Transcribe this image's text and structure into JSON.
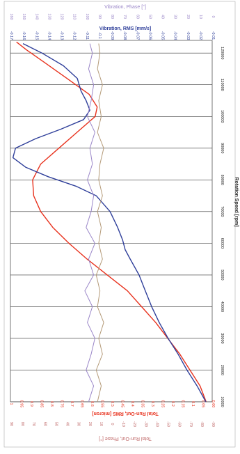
{
  "chart_data": {
    "type": "line",
    "orientation": "rotated",
    "x_axis": {
      "label": "Rotation Speed [rpm]",
      "ticks": [
        "10000",
        "20000",
        "30000",
        "40000",
        "50000",
        "60000",
        "70000",
        "80000",
        "90000",
        "100000",
        "110000",
        "120000"
      ],
      "range": [
        10000,
        124000
      ]
    },
    "rms_axis": {
      "label": "Vibration, RMS [mm/s]",
      "ticks": [
        "-0.17",
        "-0.16",
        "-0.15",
        "-0.14",
        "-0.13",
        "-0.12",
        "-0.11",
        "-0.1",
        "-0.09",
        "-0.08",
        "-0.07",
        "-0.06",
        "-0.05",
        "-0.04",
        "-0.03",
        "-0.02",
        "-0.01"
      ],
      "range": [
        -0.17,
        -0.01
      ]
    },
    "phase_axis_top": {
      "label": "Vibration, Phase [°]",
      "ticks": [
        "160",
        "150",
        "140",
        "130",
        "120",
        "110",
        "100",
        "90",
        "80",
        "70",
        "60",
        "50",
        "40",
        "30",
        "20",
        "10",
        "0"
      ]
    },
    "runout_axis": {
      "label": "Total Run-Out, RMS [micron]",
      "ticks": [
        "1",
        "0.95",
        "0.9",
        "0.85",
        "0.8",
        "0.75",
        "0.7",
        "0.65",
        "0.6",
        "0.55",
        "0.5",
        "0.45",
        "0.4",
        "0.35",
        "0.3",
        "0.25",
        "0.2",
        "0.15",
        "0.1",
        "0.05",
        "0.00"
      ],
      "range": [
        0.0,
        1.0
      ]
    },
    "phase_axis_bottom": {
      "label": "Total Run-Out, Phase [°]",
      "ticks": [
        "90",
        "80",
        "70",
        "60",
        "50",
        "40",
        "30",
        "20",
        "10",
        "0",
        "-10",
        "-20",
        "-30",
        "-40",
        "-50",
        "-60",
        "-70",
        "-80",
        "-90"
      ]
    },
    "series": [
      {
        "name": "Total Run-Out, RMS [micron]",
        "color": "#e8321e",
        "axis": "runout",
        "x": [
          10000,
          15000,
          20000,
          25000,
          30000,
          35000,
          40000,
          45000,
          50000,
          55000,
          60000,
          65000,
          70000,
          75000,
          80000,
          85000,
          90000,
          95000,
          100000,
          103000,
          107000,
          112000,
          117000,
          121000,
          123500
        ],
        "values": [
          0.03,
          0.06,
          0.11,
          0.16,
          0.22,
          0.28,
          0.35,
          0.42,
          0.52,
          0.62,
          0.71,
          0.79,
          0.85,
          0.885,
          0.89,
          0.85,
          0.76,
          0.67,
          0.58,
          0.57,
          0.61,
          0.72,
          0.83,
          0.92,
          0.97
        ]
      },
      {
        "name": "Vibration, RMS [mm/s]",
        "color": "#2f3f9a",
        "axis": "rms",
        "x": [
          10000,
          15000,
          20000,
          25000,
          30000,
          35000,
          40000,
          45000,
          50000,
          55000,
          58000,
          61000,
          65000,
          70000,
          75000,
          78000,
          81000,
          84000,
          87000,
          90000,
          93000,
          96000,
          99000,
          102000,
          105000,
          108000,
          112000,
          116000,
          120000,
          123000
        ],
        "values": [
          -0.015,
          -0.022,
          -0.03,
          -0.037,
          -0.045,
          -0.052,
          -0.058,
          -0.063,
          -0.068,
          -0.075,
          -0.079,
          -0.081,
          -0.085,
          -0.091,
          -0.102,
          -0.118,
          -0.14,
          -0.158,
          -0.168,
          -0.166,
          -0.15,
          -0.13,
          -0.112,
          -0.107,
          -0.11,
          -0.114,
          -0.117,
          -0.128,
          -0.145,
          -0.16
        ]
      },
      {
        "name": "Vibration, Phase [°]",
        "color": "#9a86c8",
        "axis": "phase",
        "x": [
          10000,
          15000,
          20000,
          25000,
          30000,
          35000,
          40000,
          45000,
          50000,
          55000,
          60000,
          65000,
          70000,
          75000,
          80000,
          85000,
          90000,
          95000,
          100000,
          105000,
          110000,
          115000,
          120000,
          123000
        ],
        "values": [
          -0.108,
          -0.104,
          -0.11,
          -0.106,
          -0.103,
          -0.109,
          -0.105,
          -0.111,
          -0.104,
          -0.108,
          -0.103,
          -0.11,
          -0.106,
          -0.104,
          -0.109,
          -0.105,
          -0.107,
          -0.103,
          -0.109,
          -0.106,
          -0.104,
          -0.108,
          -0.105,
          -0.107
        ]
      },
      {
        "name": "Total Run-Out, Phase [°]",
        "color": "#b49a78",
        "axis": "phase",
        "x": [
          10000,
          15000,
          20000,
          25000,
          30000,
          35000,
          40000,
          45000,
          50000,
          55000,
          60000,
          65000,
          70000,
          75000,
          80000,
          85000,
          90000,
          95000,
          100000,
          105000,
          110000,
          115000,
          120000,
          123000
        ],
        "values": [
          -0.101,
          -0.098,
          -0.102,
          -0.097,
          -0.1,
          -0.096,
          -0.101,
          -0.099,
          -0.102,
          -0.097,
          -0.1,
          -0.098,
          -0.101,
          -0.097,
          -0.1,
          -0.099,
          -0.096,
          -0.101,
          -0.098,
          -0.1,
          -0.097,
          -0.101,
          -0.099,
          -0.1
        ]
      }
    ],
    "grid": true
  }
}
